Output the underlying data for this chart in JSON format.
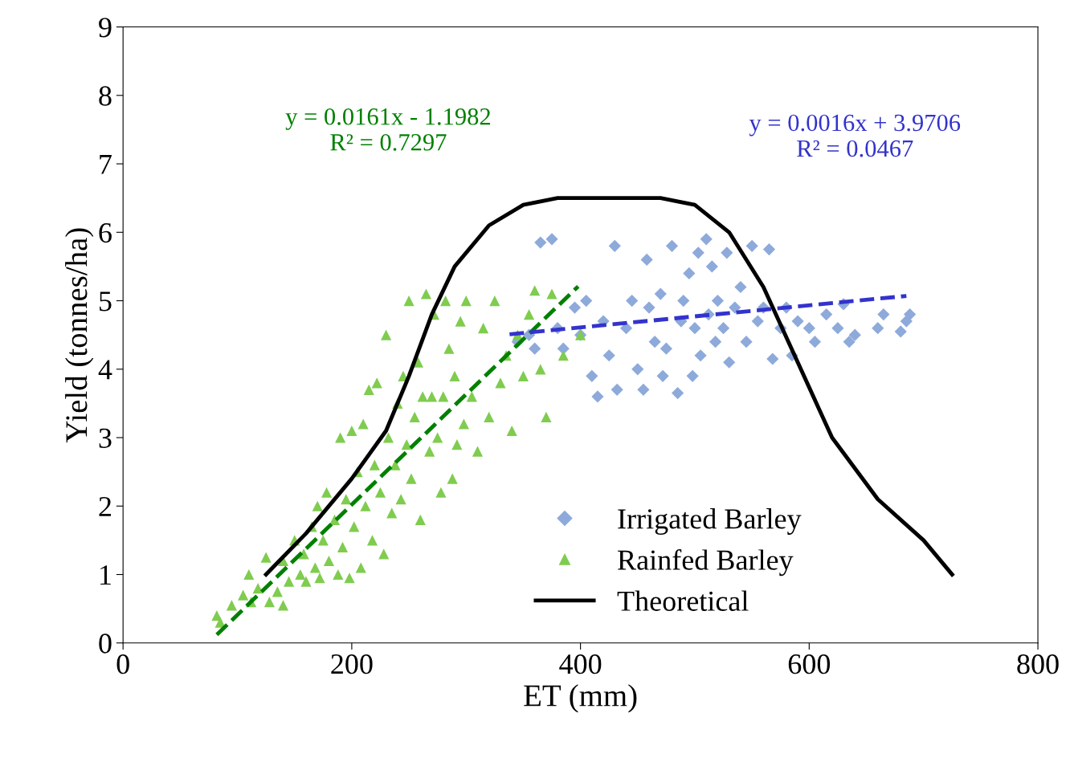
{
  "chart_data": {
    "type": "scatter",
    "xlabel": "ET (mm)",
    "ylabel": "Yield (tonnes/ha)",
    "xlim": [
      0,
      800
    ],
    "ylim": [
      0,
      9
    ],
    "xticks": [
      0,
      200,
      400,
      600,
      800
    ],
    "yticks": [
      0,
      1,
      2,
      3,
      4,
      5,
      6,
      7,
      8,
      9
    ],
    "legend": "bottom right",
    "annotations": [
      "y = 0.0161x - 1.1982\nR² = 0.7297",
      "y = 0.0016x + 3.9706\nR² = 0.0467"
    ],
    "series": [
      {
        "name": "Irrigated Barley",
        "marker": "diamond",
        "color": "#8eaadb",
        "x": [
          345,
          355,
          360,
          365,
          375,
          380,
          385,
          395,
          400,
          405,
          410,
          415,
          420,
          425,
          430,
          432,
          440,
          445,
          450,
          455,
          458,
          460,
          465,
          470,
          472,
          475,
          480,
          485,
          488,
          490,
          495,
          498,
          500,
          503,
          505,
          510,
          512,
          515,
          518,
          520,
          525,
          528,
          530,
          535,
          540,
          545,
          550,
          555,
          560,
          565,
          568,
          575,
          580,
          585,
          590,
          600,
          605,
          615,
          625,
          630,
          635,
          640,
          660,
          665,
          680,
          685,
          688
        ],
        "values": [
          4.4,
          4.5,
          4.3,
          5.85,
          5.9,
          4.6,
          4.3,
          4.9,
          4.5,
          5.0,
          3.9,
          3.6,
          4.7,
          4.2,
          5.8,
          3.7,
          4.6,
          5.0,
          4.0,
          3.7,
          5.6,
          4.9,
          4.4,
          5.1,
          3.9,
          4.3,
          5.8,
          3.65,
          4.7,
          5.0,
          5.4,
          3.9,
          4.6,
          5.7,
          4.2,
          5.9,
          4.8,
          5.5,
          4.4,
          5.0,
          4.6,
          5.7,
          4.1,
          4.9,
          5.2,
          4.4,
          5.8,
          4.7,
          4.9,
          5.75,
          4.15,
          4.6,
          4.9,
          4.2,
          4.7,
          4.6,
          4.4,
          4.8,
          4.6,
          4.95,
          4.4,
          4.5,
          4.6,
          4.8,
          4.55,
          4.7,
          4.8
        ]
      },
      {
        "name": "Rainfed Barley",
        "marker": "triangle",
        "color": "#7fcc4f",
        "x": [
          82,
          85,
          95,
          105,
          110,
          112,
          118,
          125,
          128,
          135,
          140,
          140,
          145,
          150,
          155,
          158,
          160,
          165,
          168,
          170,
          172,
          175,
          178,
          180,
          185,
          188,
          190,
          192,
          195,
          198,
          200,
          202,
          205,
          208,
          210,
          212,
          215,
          218,
          220,
          222,
          225,
          228,
          230,
          232,
          235,
          238,
          240,
          243,
          245,
          248,
          250,
          252,
          255,
          258,
          260,
          262,
          265,
          268,
          270,
          272,
          275,
          278,
          280,
          282,
          285,
          288,
          290,
          292,
          295,
          298,
          300,
          305,
          310,
          315,
          320,
          325,
          330,
          335,
          340,
          345,
          350,
          355,
          360,
          365,
          370,
          375,
          385,
          400
        ],
        "values": [
          0.4,
          0.3,
          0.55,
          0.7,
          1.0,
          0.6,
          0.8,
          1.25,
          0.6,
          0.75,
          0.55,
          1.2,
          0.9,
          1.5,
          1.0,
          1.3,
          0.9,
          1.7,
          1.1,
          2.0,
          0.95,
          1.5,
          2.2,
          1.2,
          1.8,
          1.0,
          3.0,
          1.4,
          2.1,
          0.95,
          3.1,
          1.7,
          2.5,
          1.1,
          3.2,
          2.0,
          3.7,
          1.5,
          2.6,
          3.8,
          2.2,
          1.3,
          4.5,
          3.0,
          1.9,
          2.6,
          3.5,
          2.1,
          3.9,
          2.9,
          5.0,
          2.4,
          3.3,
          4.1,
          1.8,
          3.6,
          5.1,
          2.8,
          3.6,
          4.8,
          3.0,
          2.2,
          3.6,
          5.0,
          4.3,
          2.4,
          3.9,
          2.9,
          4.7,
          3.2,
          5.0,
          3.6,
          2.8,
          4.6,
          3.3,
          5.0,
          3.8,
          4.2,
          3.1,
          4.5,
          3.9,
          4.8,
          5.15,
          4.0,
          3.3,
          5.1,
          4.2,
          4.5
        ]
      },
      {
        "name": "Theoretical",
        "type": "line",
        "marker": "none",
        "line_style": "solid",
        "color": "#000000",
        "x": [
          125,
          160,
          200,
          230,
          250,
          270,
          290,
          320,
          350,
          380,
          420,
          470,
          500,
          530,
          560,
          590,
          620,
          660,
          700,
          725
        ],
        "values": [
          1.0,
          1.6,
          2.4,
          3.1,
          3.9,
          4.8,
          5.5,
          6.1,
          6.4,
          6.5,
          6.5,
          6.5,
          6.4,
          6.0,
          5.2,
          4.1,
          3.0,
          2.1,
          1.5,
          1.0
        ]
      },
      {
        "type": "line",
        "marker": "none",
        "line_style": "dashed",
        "color": "#008000",
        "x": [
          82,
          398
        ],
        "values": [
          0.12,
          5.21
        ]
      },
      {
        "type": "line",
        "marker": "none",
        "line_style": "dashed",
        "color": "#3333cc",
        "x": [
          338,
          685
        ],
        "values": [
          4.51,
          5.07
        ]
      }
    ]
  }
}
